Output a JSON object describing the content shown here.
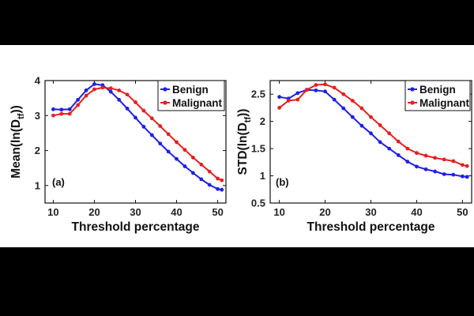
{
  "chart_data": [
    {
      "type": "line",
      "panel_label": "(a)",
      "xlabel": "Threshold percentage",
      "ylabel_main": "Mean(ln(D",
      "ylabel_sub": "tf",
      "ylabel_end": "))",
      "xlim": [
        8,
        52
      ],
      "ylim": [
        0.5,
        4
      ],
      "xticks": [
        10,
        20,
        30,
        40,
        50
      ],
      "yticks": [
        1,
        2,
        3,
        4
      ],
      "legend_position": "top-right",
      "grid": false,
      "x": [
        10,
        12,
        14,
        16,
        18,
        20,
        22,
        24,
        26,
        28,
        30,
        32,
        34,
        36,
        38,
        40,
        42,
        44,
        46,
        48,
        50,
        51
      ],
      "series": [
        {
          "name": "Benign",
          "color": "#1f1fe6",
          "values": [
            3.18,
            3.17,
            3.18,
            3.45,
            3.72,
            3.9,
            3.87,
            3.68,
            3.45,
            3.2,
            2.94,
            2.68,
            2.44,
            2.2,
            1.97,
            1.76,
            1.55,
            1.36,
            1.18,
            1.02,
            0.9,
            0.88
          ]
        },
        {
          "name": "Malignant",
          "color": "#e61f1f",
          "values": [
            3.0,
            3.05,
            3.05,
            3.3,
            3.57,
            3.75,
            3.8,
            3.78,
            3.72,
            3.6,
            3.38,
            3.14,
            2.92,
            2.7,
            2.47,
            2.24,
            2.02,
            1.8,
            1.6,
            1.4,
            1.2,
            1.15
          ]
        }
      ]
    },
    {
      "type": "line",
      "panel_label": "(b)",
      "xlabel": "Threshold percentage",
      "ylabel_main": "STD(ln(D",
      "ylabel_sub": "tf",
      "ylabel_end": "))",
      "xlim": [
        8,
        52
      ],
      "ylim": [
        0.5,
        2.75
      ],
      "xticks": [
        10,
        20,
        30,
        40,
        50
      ],
      "yticks": [
        0.5,
        1,
        1.5,
        2,
        2.5
      ],
      "legend_position": "top-right",
      "grid": false,
      "x": [
        10,
        12,
        14,
        16,
        18,
        20,
        22,
        24,
        26,
        28,
        30,
        32,
        34,
        36,
        38,
        40,
        42,
        44,
        46,
        48,
        50,
        51
      ],
      "series": [
        {
          "name": "Benign",
          "color": "#1f1fe6",
          "values": [
            2.45,
            2.42,
            2.52,
            2.58,
            2.57,
            2.55,
            2.4,
            2.24,
            2.08,
            1.92,
            1.78,
            1.62,
            1.5,
            1.38,
            1.26,
            1.17,
            1.12,
            1.08,
            1.03,
            1.02,
            0.99,
            0.98
          ]
        },
        {
          "name": "Malignant",
          "color": "#e61f1f",
          "values": [
            2.25,
            2.38,
            2.4,
            2.58,
            2.67,
            2.68,
            2.62,
            2.5,
            2.38,
            2.24,
            2.08,
            1.93,
            1.78,
            1.63,
            1.5,
            1.42,
            1.37,
            1.33,
            1.3,
            1.27,
            1.2,
            1.18
          ]
        }
      ]
    }
  ]
}
